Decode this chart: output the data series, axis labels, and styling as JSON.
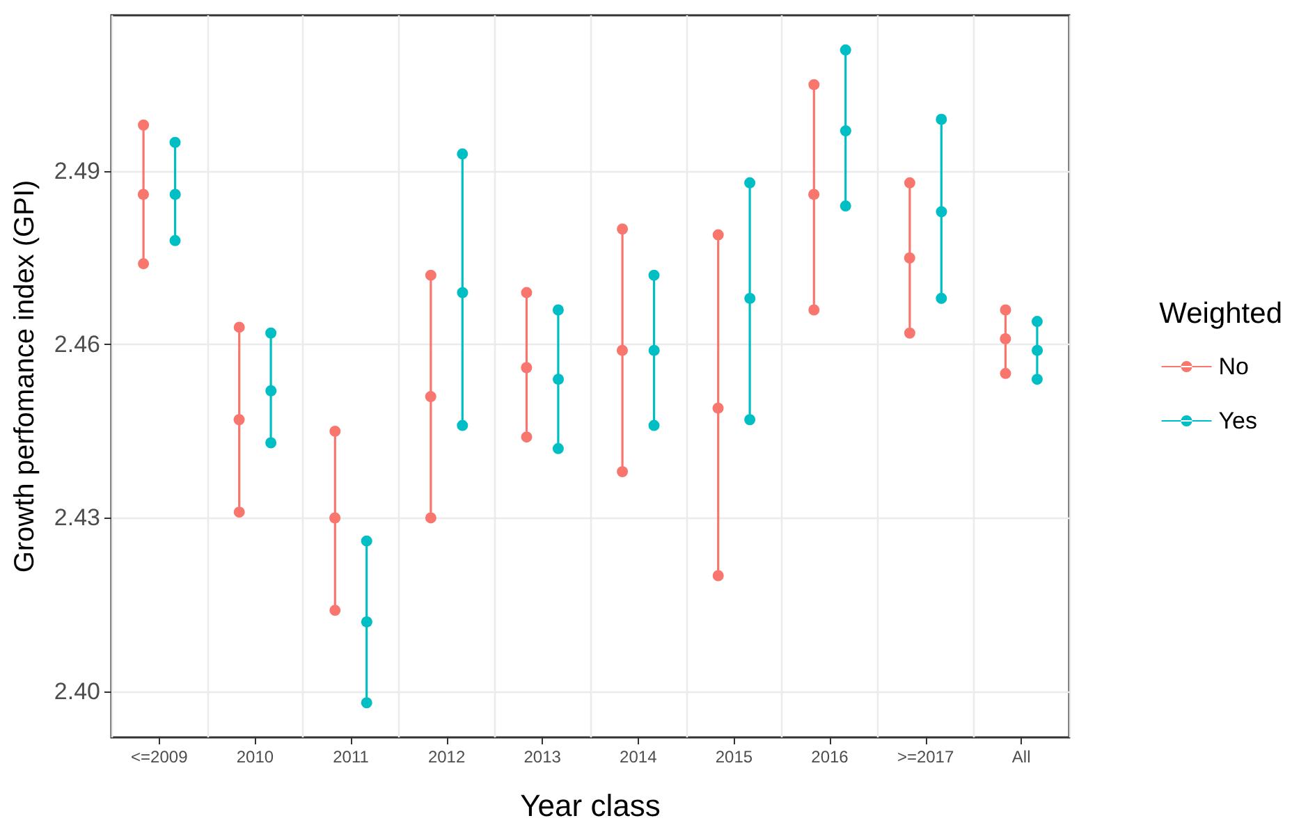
{
  "chart_data": {
    "type": "scatter",
    "xlabel": "Year class",
    "ylabel": "Growth perfomance index (GPI)",
    "legend_title": "Weighted",
    "categories": [
      "<=2009",
      "2010",
      "2011",
      "2012",
      "2013",
      "2014",
      "2015",
      "2016",
      ">=2017",
      "All"
    ],
    "series": [
      {
        "name": "No",
        "color": "#f8766d",
        "values": [
          2.486,
          2.447,
          2.43,
          2.451,
          2.456,
          2.459,
          2.449,
          2.486,
          2.475,
          2.461
        ],
        "errors": [
          [
            2.474,
            2.498
          ],
          [
            2.431,
            2.463
          ],
          [
            2.414,
            2.445
          ],
          [
            2.43,
            2.472
          ],
          [
            2.444,
            2.469
          ],
          [
            2.438,
            2.48
          ],
          [
            2.42,
            2.479
          ],
          [
            2.466,
            2.505
          ],
          [
            2.462,
            2.488
          ],
          [
            2.455,
            2.466
          ]
        ]
      },
      {
        "name": "Yes",
        "color": "#00bfc4",
        "values": [
          2.486,
          2.452,
          2.412,
          2.469,
          2.454,
          2.459,
          2.468,
          2.497,
          2.483,
          2.459
        ],
        "errors": [
          [
            2.478,
            2.495
          ],
          [
            2.443,
            2.462
          ],
          [
            2.398,
            2.426
          ],
          [
            2.446,
            2.493
          ],
          [
            2.442,
            2.466
          ],
          [
            2.446,
            2.472
          ],
          [
            2.447,
            2.488
          ],
          [
            2.484,
            2.511
          ],
          [
            2.468,
            2.499
          ],
          [
            2.454,
            2.464
          ]
        ]
      }
    ],
    "ylim": [
      2.392,
      2.517
    ],
    "yticks": [
      {
        "value": 2.4,
        "label": "2.40"
      },
      {
        "value": 2.43,
        "label": "2.43"
      },
      {
        "value": 2.46,
        "label": "2.46"
      },
      {
        "value": 2.49,
        "label": "2.49"
      }
    ],
    "grid": true,
    "legend": "right",
    "marker": "circle",
    "line_style": "solid"
  }
}
